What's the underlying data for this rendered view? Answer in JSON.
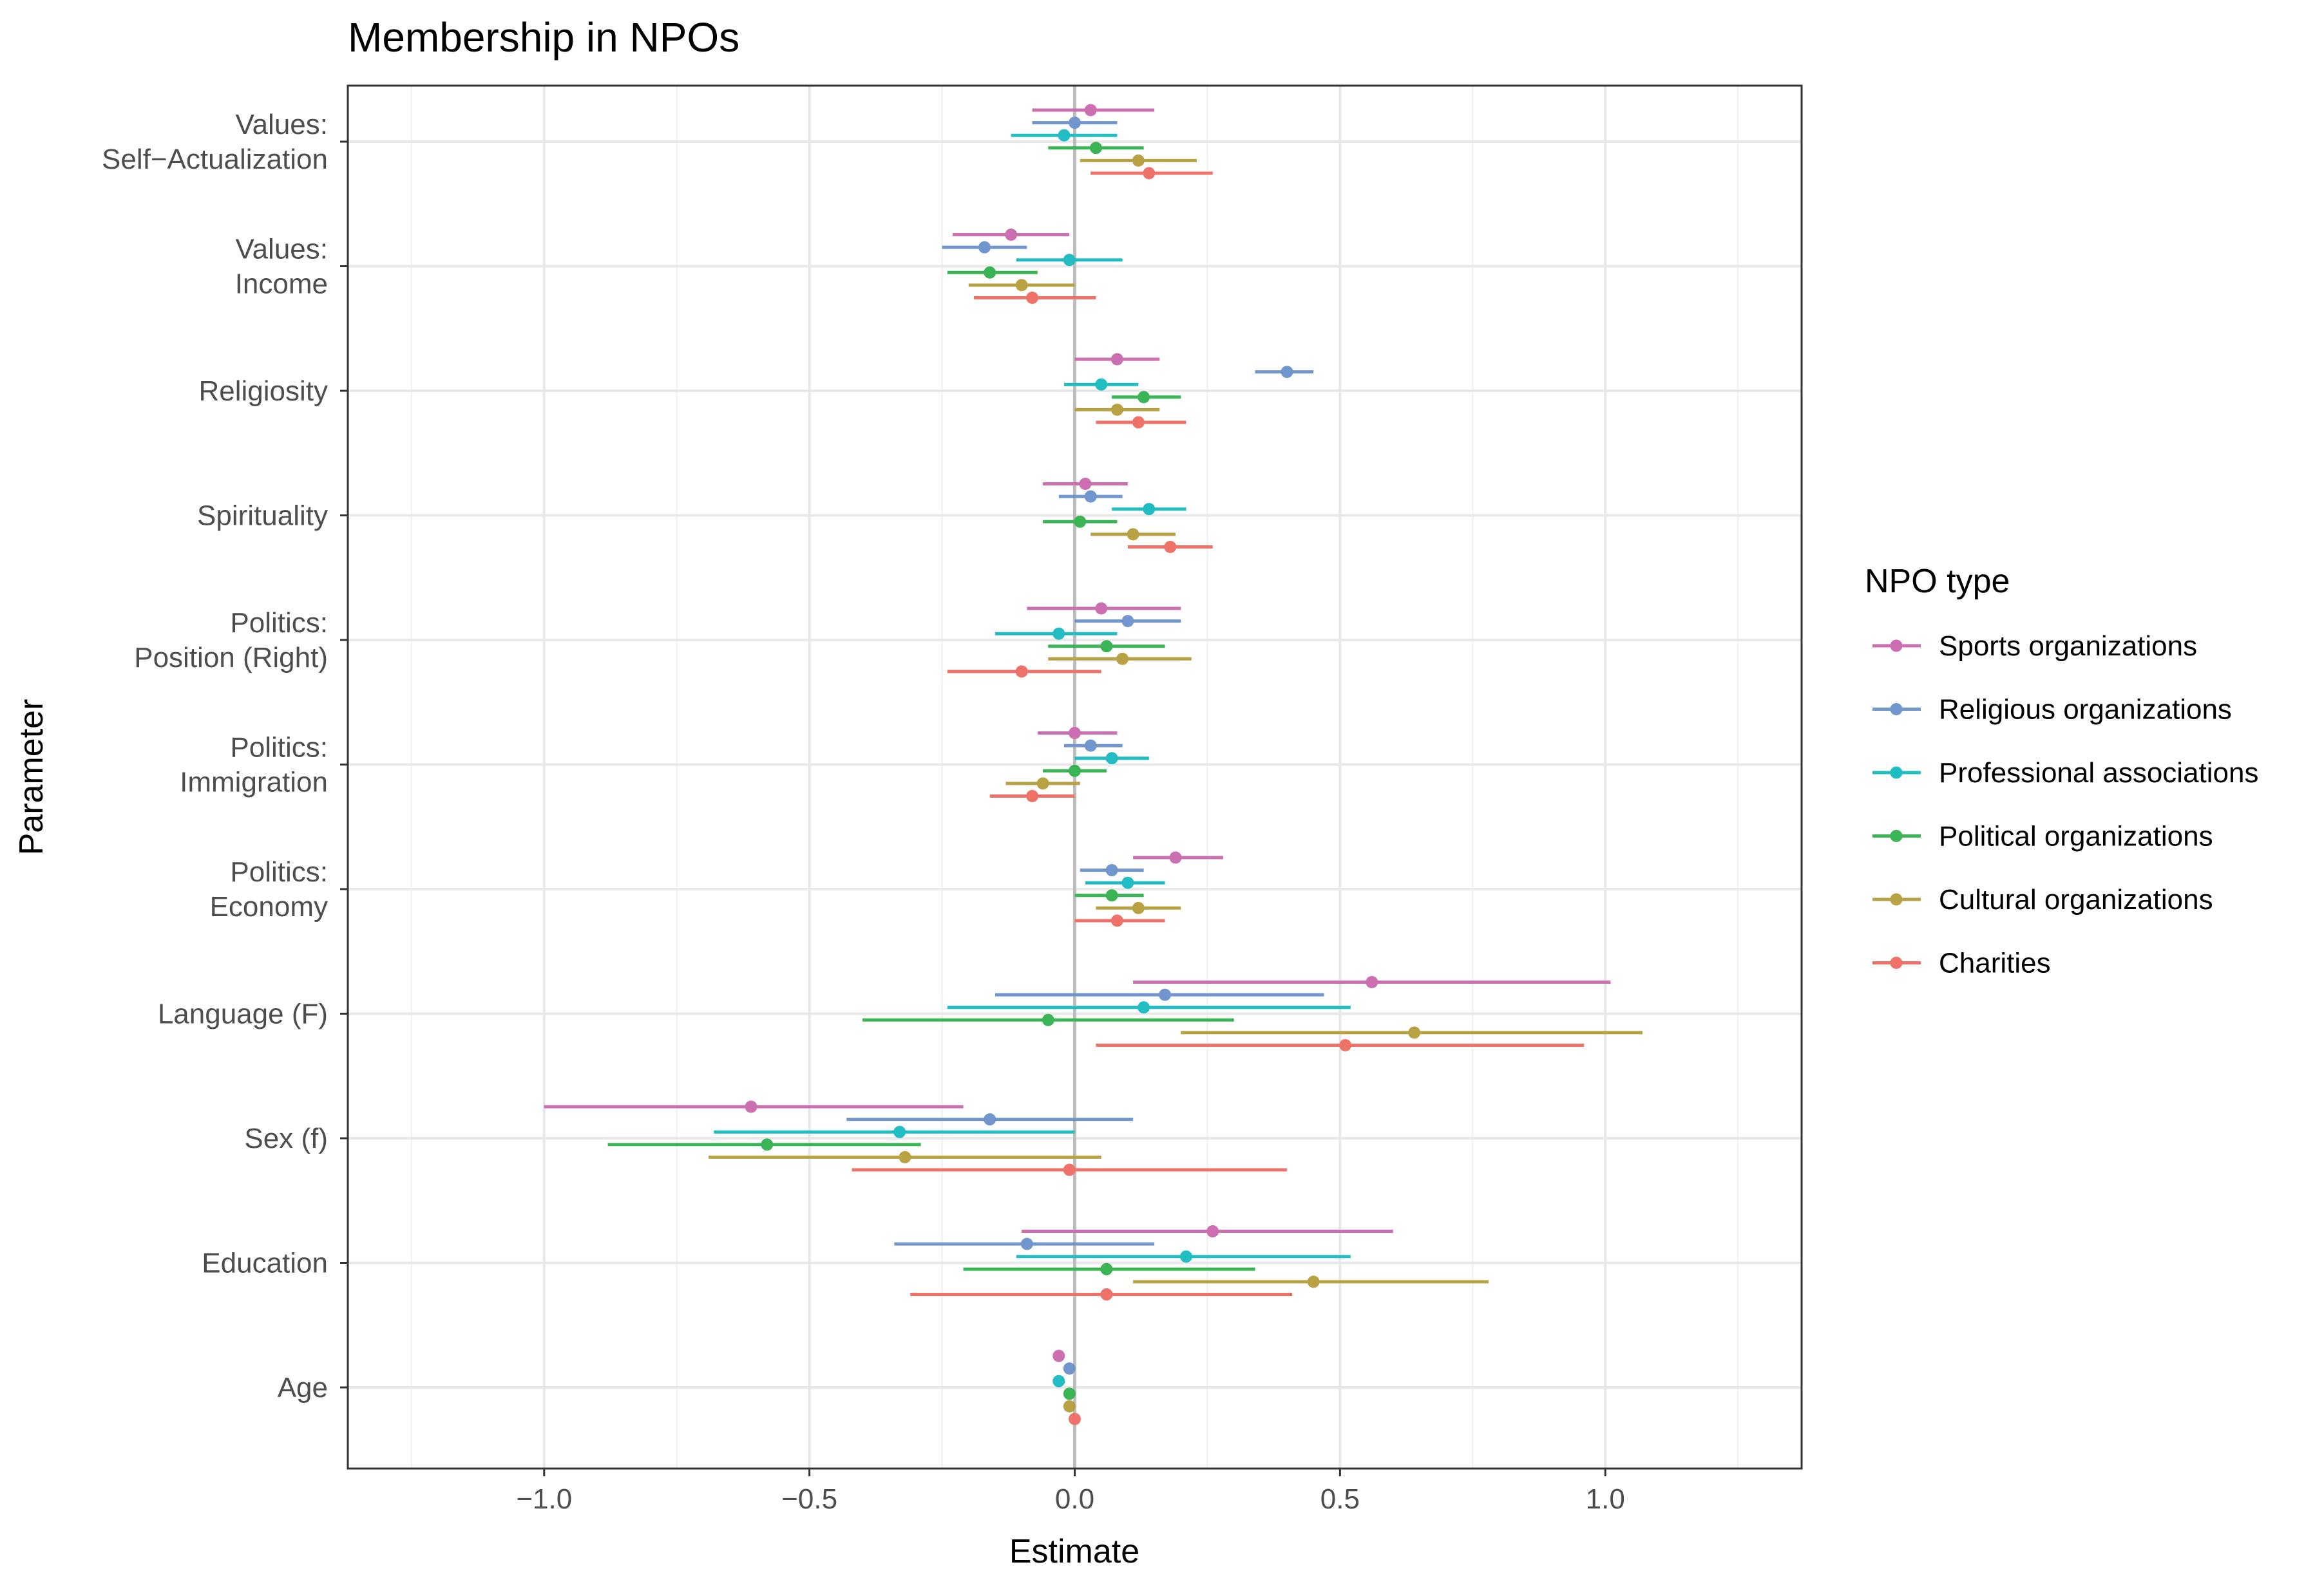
{
  "chart_data": {
    "type": "scatter",
    "subtype": "coefficient-plot",
    "title": "Membership in NPOs",
    "xlabel": "Estimate",
    "ylabel": "Parameter",
    "xlim": [
      -1.37,
      1.37
    ],
    "x_ticks": [
      {
        "value": -1.0,
        "label": "−1.0"
      },
      {
        "value": -0.5,
        "label": "−0.5"
      },
      {
        "value": 0.0,
        "label": "0.0"
      },
      {
        "value": 0.5,
        "label": "0.5"
      },
      {
        "value": 1.0,
        "label": "1.0"
      }
    ],
    "grid": true,
    "reference_line": 0,
    "categories": [
      [
        "Values:",
        "Self−Actualization"
      ],
      [
        "Values:",
        "Income"
      ],
      [
        "Religiosity"
      ],
      [
        "Spirituality"
      ],
      [
        "Politics:",
        "Position (Right)"
      ],
      [
        "Politics:",
        "Immigration"
      ],
      [
        "Politics:",
        "Economy"
      ],
      [
        "Language (F)"
      ],
      [
        "Sex (f)"
      ],
      [
        "Education"
      ],
      [
        "Age"
      ]
    ],
    "legend_title": "NPO type",
    "legend_position": "right",
    "series": [
      {
        "name": "Sports organizations",
        "color": "#CC6FB0",
        "estimates": [
          0.03,
          -0.12,
          0.08,
          0.02,
          0.05,
          0.0,
          0.19,
          0.56,
          -0.61,
          0.26,
          -0.03
        ],
        "lower": [
          -0.08,
          -0.23,
          0.0,
          -0.06,
          -0.09,
          -0.07,
          0.11,
          0.11,
          -1.0,
          -0.1,
          -0.03
        ],
        "upper": [
          0.15,
          -0.01,
          0.16,
          0.1,
          0.2,
          0.08,
          0.28,
          1.01,
          -0.21,
          0.6,
          -0.03
        ]
      },
      {
        "name": "Religious organizations",
        "color": "#7195CD",
        "estimates": [
          0.0,
          -0.17,
          0.4,
          0.03,
          0.1,
          0.03,
          0.07,
          0.17,
          -0.16,
          -0.09,
          -0.01
        ],
        "lower": [
          -0.08,
          -0.25,
          0.34,
          -0.03,
          0.0,
          -0.02,
          0.01,
          -0.15,
          -0.43,
          -0.34,
          -0.01
        ],
        "upper": [
          0.08,
          -0.09,
          0.45,
          0.09,
          0.2,
          0.09,
          0.13,
          0.47,
          0.11,
          0.15,
          -0.01
        ]
      },
      {
        "name": "Professional associations",
        "color": "#22BDC3",
        "estimates": [
          -0.02,
          -0.01,
          0.05,
          0.14,
          -0.03,
          0.07,
          0.1,
          0.13,
          -0.33,
          0.21,
          -0.03
        ],
        "lower": [
          -0.12,
          -0.11,
          -0.02,
          0.07,
          -0.15,
          0.0,
          0.02,
          -0.24,
          -0.68,
          -0.11,
          -0.03
        ],
        "upper": [
          0.08,
          0.09,
          0.12,
          0.21,
          0.08,
          0.14,
          0.17,
          0.52,
          0.0,
          0.52,
          -0.03
        ]
      },
      {
        "name": "Political organizations",
        "color": "#3BB456",
        "estimates": [
          0.04,
          -0.16,
          0.13,
          0.01,
          0.06,
          0.0,
          0.07,
          -0.05,
          -0.58,
          0.06,
          -0.01
        ],
        "lower": [
          -0.05,
          -0.24,
          0.07,
          -0.06,
          -0.05,
          -0.06,
          0.0,
          -0.4,
          -0.88,
          -0.21,
          -0.01
        ],
        "upper": [
          0.13,
          -0.07,
          0.2,
          0.08,
          0.17,
          0.06,
          0.13,
          0.3,
          -0.29,
          0.34,
          -0.01
        ]
      },
      {
        "name": "Cultural organizations",
        "color": "#B9A243",
        "estimates": [
          0.12,
          -0.1,
          0.08,
          0.11,
          0.09,
          -0.06,
          0.12,
          0.64,
          -0.32,
          0.45,
          -0.01
        ],
        "lower": [
          0.01,
          -0.2,
          0.0,
          0.03,
          -0.05,
          -0.13,
          0.04,
          0.2,
          -0.69,
          0.11,
          -0.01
        ],
        "upper": [
          0.23,
          0.0,
          0.16,
          0.19,
          0.22,
          0.01,
          0.2,
          1.07,
          0.05,
          0.78,
          -0.01
        ]
      },
      {
        "name": "Charities",
        "color": "#EE7268",
        "estimates": [
          0.14,
          -0.08,
          0.12,
          0.18,
          -0.1,
          -0.08,
          0.08,
          0.51,
          -0.01,
          0.06,
          0.0
        ],
        "lower": [
          0.03,
          -0.19,
          0.04,
          0.1,
          -0.24,
          -0.16,
          0.0,
          0.04,
          -0.42,
          -0.31,
          0.0
        ],
        "upper": [
          0.26,
          0.04,
          0.21,
          0.26,
          0.05,
          0.0,
          0.17,
          0.96,
          0.4,
          0.41,
          0.0
        ]
      }
    ]
  }
}
